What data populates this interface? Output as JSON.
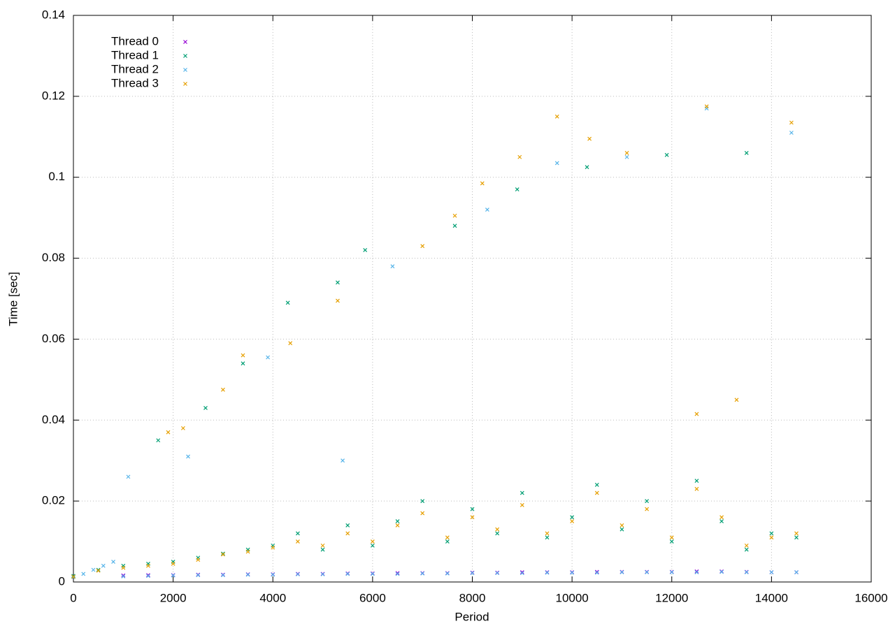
{
  "chart_data": {
    "type": "scatter",
    "x_label": "Period",
    "y_label": "Time [sec]",
    "xlim": [
      0,
      16000
    ],
    "xticks": [
      0,
      2000,
      4000,
      6000,
      8000,
      10000,
      12000,
      14000,
      16000
    ],
    "ylim": [
      0,
      0.14
    ],
    "yticks": [
      0,
      0.02,
      0.04,
      0.06,
      0.08,
      0.1,
      0.12,
      0.14
    ],
    "grid": true,
    "legend": "top-left",
    "series": [
      {
        "name": "Thread 0",
        "color": "#9400d3",
        "x": [
          1000,
          1500,
          2000,
          2500,
          3000,
          3500,
          4000,
          4500,
          5000,
          5500,
          6000,
          6500,
          7000,
          7500,
          8000,
          8500,
          9000,
          9500,
          10000,
          10500,
          11000,
          11500,
          12000,
          12500,
          13000,
          13500,
          14000,
          14500
        ],
        "values": [
          0.0016,
          0.0017,
          0.0017,
          0.0018,
          0.0018,
          0.0019,
          0.0019,
          0.002,
          0.002,
          0.0021,
          0.0021,
          0.0022,
          0.0022,
          0.0022,
          0.0023,
          0.0023,
          0.0024,
          0.0024,
          0.0024,
          0.0025,
          0.0025,
          0.0025,
          0.0025,
          0.0026,
          0.0026,
          0.0025,
          0.0024,
          0.0024
        ]
      },
      {
        "name": "Thread 1",
        "color": "#009e73",
        "x": [
          0,
          500,
          1000,
          1500,
          2000,
          2500,
          3000,
          3500,
          4000,
          4500,
          5000,
          5500,
          6000,
          6500,
          7000,
          7500,
          8000,
          8500,
          9000,
          9500,
          10000,
          10500,
          11000,
          11500,
          12000,
          12500,
          13000,
          13500,
          14000,
          14500,
          1700,
          2650,
          3400,
          4300,
          5300,
          5850,
          7650,
          8900,
          10300,
          11900,
          13500
        ],
        "values": [
          0.0015,
          0.003,
          0.004,
          0.0045,
          0.005,
          0.006,
          0.007,
          0.008,
          0.009,
          0.012,
          0.008,
          0.014,
          0.009,
          0.015,
          0.02,
          0.01,
          0.018,
          0.012,
          0.022,
          0.011,
          0.016,
          0.024,
          0.013,
          0.02,
          0.01,
          0.025,
          0.015,
          0.008,
          0.012,
          0.011,
          0.035,
          0.043,
          0.054,
          0.069,
          0.074,
          0.082,
          0.088,
          0.097,
          0.1025,
          0.1055,
          0.106
        ]
      },
      {
        "name": "Thread 2",
        "color": "#56b4e9",
        "x": [
          0,
          200,
          400,
          600,
          800,
          1000,
          1500,
          2000,
          2500,
          3000,
          3500,
          4000,
          4500,
          5000,
          5500,
          6000,
          6500,
          7000,
          7500,
          8000,
          8500,
          9000,
          9500,
          10000,
          10500,
          11000,
          11500,
          12000,
          12500,
          13000,
          13500,
          14000,
          14500,
          1100,
          2300,
          3900,
          5400,
          6400,
          8300,
          9700,
          11100,
          12700,
          14400
        ],
        "values": [
          0.0012,
          0.002,
          0.003,
          0.004,
          0.005,
          0.0014,
          0.0015,
          0.0016,
          0.0017,
          0.0017,
          0.0018,
          0.0018,
          0.0019,
          0.0019,
          0.002,
          0.002,
          0.002,
          0.0021,
          0.0021,
          0.0022,
          0.0022,
          0.0022,
          0.0023,
          0.0023,
          0.0023,
          0.0024,
          0.0024,
          0.0024,
          0.0024,
          0.0025,
          0.0024,
          0.0024,
          0.0024,
          0.026,
          0.031,
          0.0555,
          0.03,
          0.078,
          0.092,
          0.1035,
          0.105,
          0.117,
          0.111
        ]
      },
      {
        "name": "Thread 3",
        "color": "#e69f00",
        "x": [
          0,
          500,
          1000,
          1500,
          2000,
          2500,
          3000,
          3500,
          4000,
          4500,
          5000,
          5500,
          6000,
          6500,
          7000,
          7500,
          8000,
          8500,
          9000,
          9500,
          10000,
          10500,
          11000,
          11500,
          12000,
          12500,
          13000,
          13500,
          14000,
          14500,
          1900,
          2200,
          3000,
          3400,
          4350,
          5300,
          7000,
          7650,
          8200,
          8950,
          9700,
          10350,
          11100,
          12700,
          14400,
          12500,
          13300
        ],
        "values": [
          0.0013,
          0.0028,
          0.0035,
          0.004,
          0.0045,
          0.0055,
          0.0068,
          0.0075,
          0.0085,
          0.01,
          0.009,
          0.012,
          0.01,
          0.014,
          0.017,
          0.011,
          0.016,
          0.013,
          0.019,
          0.012,
          0.015,
          0.022,
          0.014,
          0.018,
          0.011,
          0.023,
          0.016,
          0.009,
          0.011,
          0.012,
          0.037,
          0.038,
          0.0475,
          0.056,
          0.059,
          0.0695,
          0.083,
          0.0905,
          0.0985,
          0.105,
          0.115,
          0.1095,
          0.106,
          0.1175,
          0.1135,
          0.0415,
          0.045
        ]
      }
    ]
  }
}
